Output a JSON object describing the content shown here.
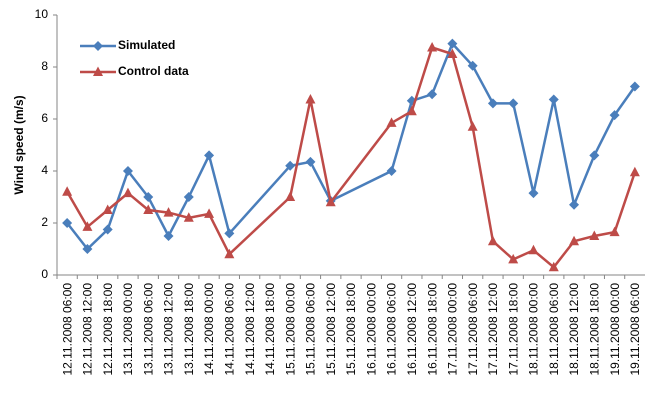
{
  "chart_data": {
    "type": "line",
    "y_label": "Wind speed (m/s)",
    "categories": [
      "12.11.2008 06:00",
      "12.11.2008 12:00",
      "12.11.2008 18:00",
      "13.11.2008 00:00",
      "13.11.2008 06:00",
      "13.11.2008 12:00",
      "13.11.2008 18:00",
      "14.11.2008 00:00",
      "14.11.2008 06:00",
      "14.11.2008 12:00",
      "14.11.2008 18:00",
      "15.11.2008 00:00",
      "15.11.2008 06:00",
      "15.11.2008 12:00",
      "15.11.2008 18:00",
      "16.11.2008 00:00",
      "16.11.2008 06:00",
      "16.11.2008 12:00",
      "16.11.2008 18:00",
      "17.11.2008 00:00",
      "17.11.2008 06:00",
      "17.11.2008 12:00",
      "17.11.2008 18:00",
      "18.11.2008 00:00",
      "18.11.2008 06:00",
      "18.11.2008 12:00",
      "18.11.2008 18:00",
      "19.11.2008 00:00",
      "19.11.2008 06:00"
    ],
    "series": [
      {
        "name": "Simulated",
        "color": "#4a7ebb",
        "marker": "diamond",
        "values": [
          2.0,
          1.0,
          1.75,
          4.0,
          3.0,
          1.5,
          3.0,
          4.6,
          1.6,
          null,
          null,
          4.2,
          4.35,
          2.85,
          null,
          null,
          4.0,
          6.7,
          6.95,
          8.9,
          8.05,
          6.6,
          6.6,
          3.15,
          6.75,
          2.7,
          4.6,
          6.15,
          7.25
        ]
      },
      {
        "name": "Control data",
        "color": "#be4b48",
        "marker": "triangle",
        "values": [
          3.2,
          1.85,
          2.5,
          3.15,
          2.5,
          2.4,
          2.2,
          2.35,
          0.8,
          null,
          null,
          3.0,
          6.75,
          2.8,
          null,
          null,
          5.85,
          6.3,
          8.75,
          8.5,
          5.7,
          1.3,
          0.6,
          0.95,
          0.3,
          1.3,
          1.5,
          1.65,
          3.95
        ]
      }
    ],
    "ylim": [
      0,
      10
    ],
    "yticks": [
      0,
      2,
      4,
      6,
      8,
      10
    ],
    "grid": false,
    "connect_gaps": true,
    "legend": "top-left"
  }
}
